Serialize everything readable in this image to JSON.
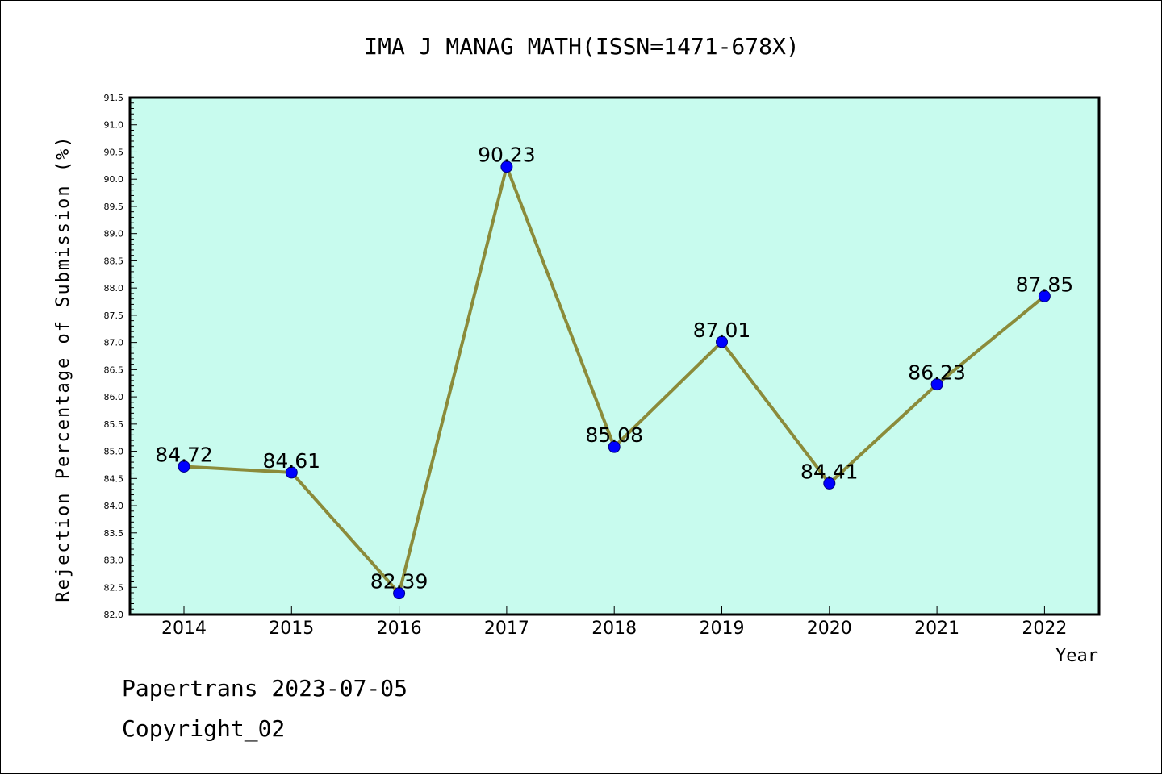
{
  "chart_data": {
    "type": "line",
    "title": "IMA J MANAG MATH(ISSN=1471-678X)",
    "xlabel": "Year",
    "ylabel": "Rejection Percentage of Submission (%)",
    "categories": [
      "2014",
      "2015",
      "2016",
      "2017",
      "2018",
      "2019",
      "2020",
      "2021",
      "2022"
    ],
    "values": [
      84.72,
      84.61,
      82.39,
      90.23,
      85.08,
      87.01,
      84.41,
      86.23,
      87.85
    ],
    "data_labels": [
      "84.72",
      "84.61",
      "82.39",
      "90.23",
      "85.08",
      "87.01",
      "84.41",
      "86.23",
      "87.85"
    ],
    "ylim": [
      82.0,
      91.5
    ],
    "ytick_labels": [
      "82.0",
      "82.5",
      "83.0",
      "83.5",
      "84.0",
      "84.5",
      "85.0",
      "85.5",
      "86.0",
      "86.5",
      "87.0",
      "87.5",
      "88.0",
      "88.5",
      "89.0",
      "89.5",
      "90.0",
      "90.5",
      "91.0",
      "91.5"
    ],
    "grid": false,
    "legend": "none",
    "colors": {
      "plot_background": "#c8fbee",
      "line": "#8b8b3a",
      "marker": "#0000ff",
      "axis": "#000000"
    }
  },
  "footer": {
    "line1": "Papertrans 2023-07-05",
    "line2": "Copyright_02"
  }
}
